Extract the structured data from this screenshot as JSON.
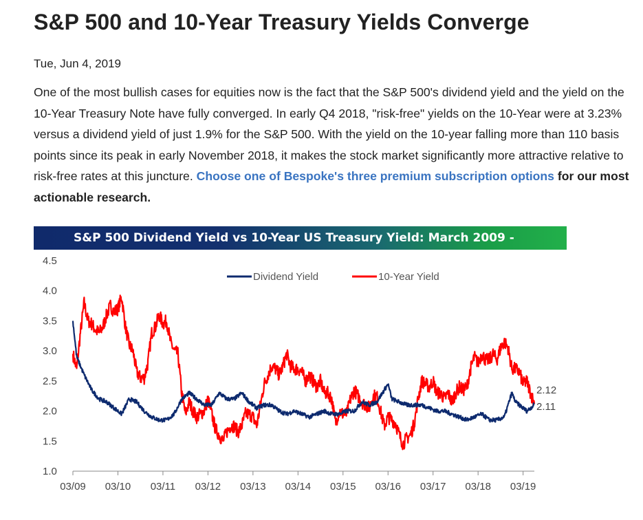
{
  "article": {
    "title": "S&P 500 and 10-Year Treasury Yields Converge",
    "date": "Tue, Jun 4, 2019",
    "paragraph": "One of the most bullish cases for equities now is the fact that the S&P 500's dividend yield and the yield on the 10-Year Treasury Note have fully converged.  In early Q4 2018, \"risk-free\" yields on the 10-Year were at 3.23% versus a dividend yield of just 1.9% for the S&P 500.  With the yield on the 10-year falling more than 110 basis points since its peak in early November 2018, it makes the stock market significantly more attractive relative to risk-free rates at this juncture.  ",
    "link_text": "Choose one of Bespoke's three premium subscription options",
    "link_suffix": " for our most actionable research."
  },
  "chart_data": {
    "type": "line",
    "title": "S&P 500 Dividend Yield vs 10-Year US Treasury Yield: March 2009 -",
    "xlabel": "",
    "ylabel": "",
    "x_ticks": [
      "03/09",
      "03/10",
      "03/11",
      "03/12",
      "03/13",
      "03/14",
      "03/15",
      "03/16",
      "03/17",
      "03/18",
      "03/19"
    ],
    "y_ticks": [
      "1.0",
      "1.5",
      "2.0",
      "2.5",
      "3.0",
      "3.5",
      "4.0",
      "4.5"
    ],
    "ylim": [
      1.0,
      4.5
    ],
    "xlim": [
      "2009-03",
      "2019-06"
    ],
    "grid": false,
    "legend_position": "top-center",
    "series": [
      {
        "name": "Dividend Yield",
        "color": "#0d2a6e",
        "points": [
          [
            "2009-03",
            3.5
          ],
          [
            "2009-04",
            2.9
          ],
          [
            "2009-06",
            2.6
          ],
          [
            "2009-08",
            2.35
          ],
          [
            "2009-10",
            2.2
          ],
          [
            "2009-12",
            2.15
          ],
          [
            "2010-02",
            2.05
          ],
          [
            "2010-04",
            1.95
          ],
          [
            "2010-06",
            2.2
          ],
          [
            "2010-08",
            2.15
          ],
          [
            "2010-10",
            2.0
          ],
          [
            "2010-12",
            1.9
          ],
          [
            "2011-02",
            1.85
          ],
          [
            "2011-04",
            1.85
          ],
          [
            "2011-06",
            1.95
          ],
          [
            "2011-08",
            2.2
          ],
          [
            "2011-10",
            2.3
          ],
          [
            "2011-12",
            2.2
          ],
          [
            "2012-02",
            2.1
          ],
          [
            "2012-04",
            2.1
          ],
          [
            "2012-06",
            2.3
          ],
          [
            "2012-08",
            2.2
          ],
          [
            "2012-10",
            2.2
          ],
          [
            "2012-12",
            2.3
          ],
          [
            "2013-02",
            2.15
          ],
          [
            "2013-04",
            2.05
          ],
          [
            "2013-06",
            2.1
          ],
          [
            "2013-08",
            2.1
          ],
          [
            "2013-10",
            2.0
          ],
          [
            "2013-12",
            1.95
          ],
          [
            "2014-02",
            2.0
          ],
          [
            "2014-04",
            1.95
          ],
          [
            "2014-06",
            1.9
          ],
          [
            "2014-08",
            1.95
          ],
          [
            "2014-10",
            2.0
          ],
          [
            "2014-12",
            1.95
          ],
          [
            "2015-02",
            1.95
          ],
          [
            "2015-04",
            2.0
          ],
          [
            "2015-06",
            2.0
          ],
          [
            "2015-08",
            2.15
          ],
          [
            "2015-10",
            2.1
          ],
          [
            "2015-12",
            2.15
          ],
          [
            "2016-02",
            2.35
          ],
          [
            "2016-03",
            2.45
          ],
          [
            "2016-04",
            2.2
          ],
          [
            "2016-06",
            2.15
          ],
          [
            "2016-08",
            2.1
          ],
          [
            "2016-10",
            2.1
          ],
          [
            "2016-12",
            2.1
          ],
          [
            "2017-02",
            2.05
          ],
          [
            "2017-04",
            2.0
          ],
          [
            "2017-06",
            2.0
          ],
          [
            "2017-08",
            1.95
          ],
          [
            "2017-10",
            1.9
          ],
          [
            "2017-12",
            1.85
          ],
          [
            "2018-02",
            1.9
          ],
          [
            "2018-04",
            1.95
          ],
          [
            "2018-06",
            1.85
          ],
          [
            "2018-08",
            1.85
          ],
          [
            "2018-10",
            1.9
          ],
          [
            "2018-12",
            2.3
          ],
          [
            "2019-01",
            2.15
          ],
          [
            "2019-02",
            2.1
          ],
          [
            "2019-04",
            2.0
          ],
          [
            "2019-05",
            2.05
          ],
          [
            "2019-06",
            2.11
          ]
        ]
      },
      {
        "name": "10-Year Yield",
        "color": "#ff0000",
        "points": [
          [
            "2009-03",
            2.95
          ],
          [
            "2009-04",
            2.7
          ],
          [
            "2009-05",
            3.3
          ],
          [
            "2009-06",
            3.8
          ],
          [
            "2009-07",
            3.5
          ],
          [
            "2009-08",
            3.45
          ],
          [
            "2009-09",
            3.35
          ],
          [
            "2009-10",
            3.3
          ],
          [
            "2009-11",
            3.4
          ],
          [
            "2009-12",
            3.6
          ],
          [
            "2010-01",
            3.75
          ],
          [
            "2010-02",
            3.65
          ],
          [
            "2010-03",
            3.7
          ],
          [
            "2010-04",
            3.9
          ],
          [
            "2010-05",
            3.4
          ],
          [
            "2010-06",
            3.1
          ],
          [
            "2010-07",
            3.0
          ],
          [
            "2010-08",
            2.65
          ],
          [
            "2010-09",
            2.55
          ],
          [
            "2010-10",
            2.55
          ],
          [
            "2010-11",
            2.8
          ],
          [
            "2010-12",
            3.3
          ],
          [
            "2011-01",
            3.4
          ],
          [
            "2011-02",
            3.6
          ],
          [
            "2011-03",
            3.45
          ],
          [
            "2011-04",
            3.5
          ],
          [
            "2011-05",
            3.15
          ],
          [
            "2011-06",
            3.0
          ],
          [
            "2011-07",
            2.95
          ],
          [
            "2011-08",
            2.3
          ],
          [
            "2011-09",
            1.95
          ],
          [
            "2011-10",
            2.15
          ],
          [
            "2011-11",
            2.0
          ],
          [
            "2011-12",
            1.9
          ],
          [
            "2012-01",
            1.95
          ],
          [
            "2012-02",
            2.0
          ],
          [
            "2012-03",
            2.2
          ],
          [
            "2012-04",
            1.95
          ],
          [
            "2012-05",
            1.7
          ],
          [
            "2012-06",
            1.6
          ],
          [
            "2012-07",
            1.5
          ],
          [
            "2012-08",
            1.65
          ],
          [
            "2012-09",
            1.75
          ],
          [
            "2012-10",
            1.75
          ],
          [
            "2012-11",
            1.65
          ],
          [
            "2012-12",
            1.75
          ],
          [
            "2013-01",
            1.95
          ],
          [
            "2013-02",
            1.95
          ],
          [
            "2013-03",
            1.9
          ],
          [
            "2013-04",
            1.75
          ],
          [
            "2013-05",
            2.1
          ],
          [
            "2013-06",
            2.45
          ],
          [
            "2013-07",
            2.6
          ],
          [
            "2013-08",
            2.75
          ],
          [
            "2013-09",
            2.7
          ],
          [
            "2013-10",
            2.6
          ],
          [
            "2013-11",
            2.75
          ],
          [
            "2013-12",
            2.95
          ],
          [
            "2014-01",
            2.75
          ],
          [
            "2014-02",
            2.7
          ],
          [
            "2014-03",
            2.7
          ],
          [
            "2014-04",
            2.65
          ],
          [
            "2014-05",
            2.5
          ],
          [
            "2014-06",
            2.6
          ],
          [
            "2014-07",
            2.5
          ],
          [
            "2014-08",
            2.4
          ],
          [
            "2014-09",
            2.5
          ],
          [
            "2014-10",
            2.3
          ],
          [
            "2014-11",
            2.3
          ],
          [
            "2014-12",
            2.2
          ],
          [
            "2015-01",
            1.8
          ],
          [
            "2015-02",
            2.0
          ],
          [
            "2015-03",
            1.95
          ],
          [
            "2015-04",
            1.95
          ],
          [
            "2015-05",
            2.2
          ],
          [
            "2015-06",
            2.35
          ],
          [
            "2015-07",
            2.25
          ],
          [
            "2015-08",
            2.15
          ],
          [
            "2015-09",
            2.1
          ],
          [
            "2015-10",
            2.05
          ],
          [
            "2015-11",
            2.25
          ],
          [
            "2015-12",
            2.25
          ],
          [
            "2016-01",
            2.0
          ],
          [
            "2016-02",
            1.75
          ],
          [
            "2016-03",
            1.9
          ],
          [
            "2016-04",
            1.85
          ],
          [
            "2016-05",
            1.8
          ],
          [
            "2016-06",
            1.6
          ],
          [
            "2016-07",
            1.45
          ],
          [
            "2016-08",
            1.55
          ],
          [
            "2016-09",
            1.6
          ],
          [
            "2016-10",
            1.8
          ],
          [
            "2016-11",
            2.2
          ],
          [
            "2016-12",
            2.5
          ],
          [
            "2017-01",
            2.45
          ],
          [
            "2017-02",
            2.4
          ],
          [
            "2017-03",
            2.5
          ],
          [
            "2017-04",
            2.3
          ],
          [
            "2017-05",
            2.3
          ],
          [
            "2017-06",
            2.2
          ],
          [
            "2017-07",
            2.3
          ],
          [
            "2017-08",
            2.15
          ],
          [
            "2017-09",
            2.3
          ],
          [
            "2017-10",
            2.4
          ],
          [
            "2017-11",
            2.35
          ],
          [
            "2017-12",
            2.4
          ],
          [
            "2018-01",
            2.7
          ],
          [
            "2018-02",
            2.9
          ],
          [
            "2018-03",
            2.8
          ],
          [
            "2018-04",
            2.95
          ],
          [
            "2018-05",
            2.85
          ],
          [
            "2018-06",
            2.85
          ],
          [
            "2018-07",
            2.95
          ],
          [
            "2018-08",
            2.85
          ],
          [
            "2018-09",
            3.05
          ],
          [
            "2018-10",
            3.15
          ],
          [
            "2018-11",
            3.05
          ],
          [
            "2018-12",
            2.7
          ],
          [
            "2019-01",
            2.7
          ],
          [
            "2019-02",
            2.65
          ],
          [
            "2019-03",
            2.45
          ],
          [
            "2019-04",
            2.5
          ],
          [
            "2019-05",
            2.3
          ],
          [
            "2019-06",
            2.12
          ]
        ]
      }
    ],
    "end_labels": [
      "2.12",
      "2.11"
    ]
  }
}
